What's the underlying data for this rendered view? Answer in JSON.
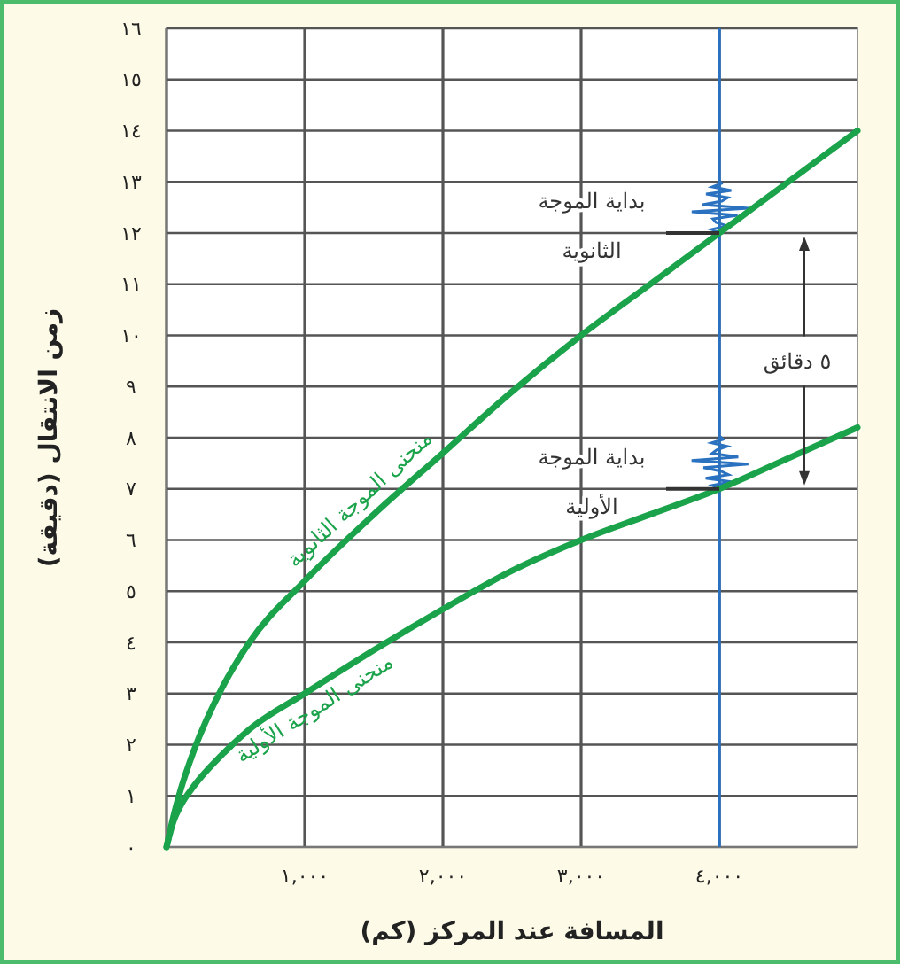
{
  "chart_data": {
    "type": "line",
    "xlabel": "المسافة عند المركز (كم)",
    "ylabel": "زمن الانتقال (دقيقة)",
    "xlim": [
      0,
      5000
    ],
    "ylim": [
      0,
      16
    ],
    "xticks": [
      {
        "value": 0,
        "label": null
      },
      {
        "value": 1000,
        "label": "١,٠٠٠"
      },
      {
        "value": 2000,
        "label": "٢,٠٠٠"
      },
      {
        "value": 3000,
        "label": "٣,٠٠٠"
      },
      {
        "value": 4000,
        "label": "٤,٠٠٠"
      }
    ],
    "yticks": [
      {
        "value": 0,
        "label": "٠"
      },
      {
        "value": 1,
        "label": "١"
      },
      {
        "value": 2,
        "label": "٢"
      },
      {
        "value": 3,
        "label": "٣"
      },
      {
        "value": 4,
        "label": "٤"
      },
      {
        "value": 5,
        "label": "٥"
      },
      {
        "value": 6,
        "label": "٦"
      },
      {
        "value": 7,
        "label": "٧"
      },
      {
        "value": 8,
        "label": "٨"
      },
      {
        "value": 9,
        "label": "٩"
      },
      {
        "value": 10,
        "label": "١٠"
      },
      {
        "value": 11,
        "label": "١١"
      },
      {
        "value": 12,
        "label": "١٢"
      },
      {
        "value": 13,
        "label": "١٣"
      },
      {
        "value": 14,
        "label": "١٤"
      },
      {
        "value": 15,
        "label": "١٥"
      },
      {
        "value": 16,
        "label": "١٦"
      }
    ],
    "grid": true,
    "legend": false,
    "marker": "none",
    "line_style": "solid",
    "series": [
      {
        "name": "منحنى الموجة الثانوية",
        "color": "#1aa34a",
        "x": [
          0,
          50,
          100,
          200,
          400,
          600,
          1000,
          1500,
          2000,
          2500,
          3000,
          3500,
          4000,
          4500,
          5000
        ],
        "values": [
          0,
          0.6,
          1.1,
          1.9,
          3.1,
          4.0,
          5.2,
          6.5,
          7.7,
          8.9,
          10.0,
          11.0,
          12.0,
          13.0,
          14.0
        ]
      },
      {
        "name": "منحنى الموجة الأولية",
        "color": "#1aa34a",
        "x": [
          0,
          50,
          100,
          200,
          400,
          600,
          1000,
          1500,
          2000,
          2500,
          3000,
          3500,
          4000,
          4500,
          5000
        ],
        "values": [
          0,
          0.5,
          0.8,
          1.2,
          1.8,
          2.3,
          3.0,
          3.85,
          4.65,
          5.4,
          6.0,
          6.5,
          7.0,
          7.6,
          8.2
        ]
      }
    ],
    "ref_lines": [
      {
        "axis": "x",
        "value": 4000,
        "color": "#2a72c0"
      }
    ],
    "annotations": [
      {
        "text": "بداية الموجة الثانوية",
        "x": 4000,
        "y": 12
      },
      {
        "text": "بداية الموجة الأولية",
        "x": 4000,
        "y": 7
      },
      "٥ دقائق"
    ]
  }
}
